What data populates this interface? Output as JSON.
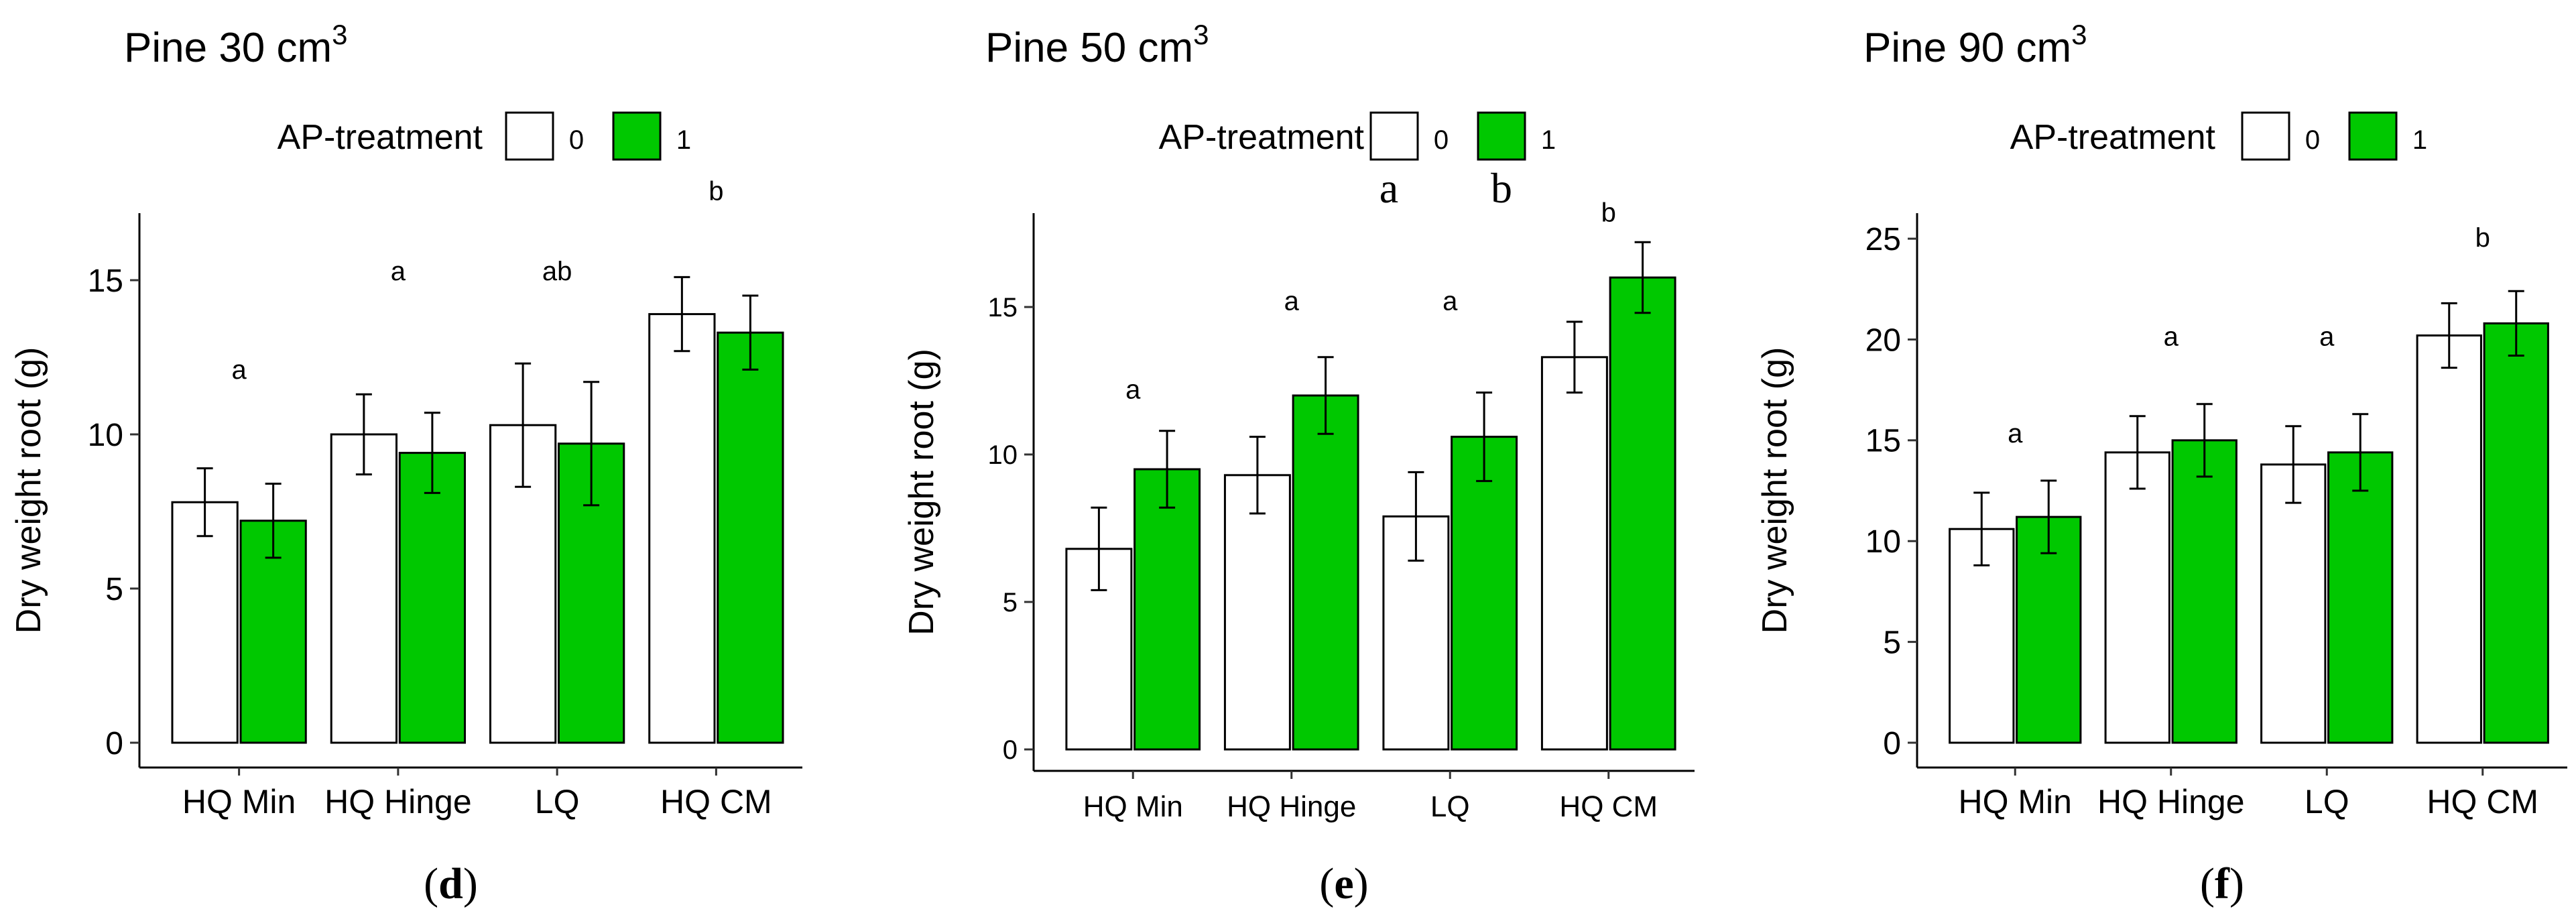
{
  "chart_data": [
    {
      "type": "bar",
      "title": "Pine 30 cm",
      "title_superscript": "3",
      "panel_label": {
        "open": "(",
        "letter": "d",
        "close": ")"
      },
      "legend": {
        "title": "AP-treatment",
        "entries": [
          {
            "label": "0",
            "color": "#ffffff"
          },
          {
            "label": "1",
            "color": "#00c800"
          }
        ],
        "placement": "top"
      },
      "xlabel": "",
      "ylabel": "Dry weight root (g)",
      "ylim": [
        0,
        17
      ],
      "yticks": [
        0,
        5,
        10,
        15
      ],
      "categories": [
        "HQ Min",
        "HQ Hinge",
        "LQ",
        "HQ CM"
      ],
      "series": [
        {
          "name": "0",
          "color": "#ffffff",
          "values": [
            7.8,
            10.0,
            10.3,
            13.9
          ],
          "errors": [
            1.1,
            1.3,
            2.0,
            1.2
          ]
        },
        {
          "name": "1",
          "color": "#00c800",
          "values": [
            7.2,
            9.4,
            9.7,
            13.3
          ],
          "errors": [
            1.2,
            1.3,
            2.0,
            1.2
          ]
        }
      ],
      "group_letters": [
        "a",
        "a",
        "ab",
        "b"
      ],
      "group_letter_values": [
        11.8,
        15.0,
        15.0,
        17.6
      ],
      "extra_annotations": []
    },
    {
      "type": "bar",
      "title": "Pine 50 cm",
      "title_superscript": "3",
      "panel_label": {
        "open": "(",
        "letter": "e",
        "close": ")"
      },
      "legend": {
        "title": "AP-treatment",
        "entries": [
          {
            "label": "0",
            "color": "#ffffff"
          },
          {
            "label": "1",
            "color": "#00c800"
          }
        ],
        "placement": "top"
      },
      "xlabel": "",
      "ylabel": "Dry weight root (g)",
      "ylim": [
        0,
        18
      ],
      "yticks": [
        0,
        5,
        10,
        15
      ],
      "categories": [
        "HQ Min",
        "HQ Hinge",
        "LQ",
        "HQ CM"
      ],
      "series": [
        {
          "name": "0",
          "color": "#ffffff",
          "values": [
            6.8,
            9.3,
            7.9,
            13.3
          ],
          "errors": [
            1.4,
            1.3,
            1.5,
            1.2
          ]
        },
        {
          "name": "1",
          "color": "#00c800",
          "values": [
            9.5,
            12.0,
            10.6,
            16.0
          ],
          "errors": [
            1.3,
            1.3,
            1.5,
            1.2
          ]
        }
      ],
      "group_letters": [
        "a",
        "a",
        "a",
        "b"
      ],
      "group_letter_values": [
        11.9,
        14.9,
        14.9,
        17.9
      ],
      "extra_annotations": [
        "a",
        "b"
      ]
    },
    {
      "type": "bar",
      "title": "Pine 90 cm",
      "title_superscript": "3",
      "panel_label": {
        "open": "(",
        "letter": "f",
        "close": ")"
      },
      "legend": {
        "title": "AP-treatment",
        "entries": [
          {
            "label": "0",
            "color": "#ffffff"
          },
          {
            "label": "1",
            "color": "#00c800"
          }
        ],
        "placement": "top"
      },
      "xlabel": "",
      "ylabel": "Dry weight root (g)",
      "ylim": [
        0,
        26
      ],
      "yticks": [
        0,
        5,
        10,
        15,
        20,
        25
      ],
      "categories": [
        "HQ Min",
        "HQ Hinge",
        "LQ",
        "HQ CM"
      ],
      "series": [
        {
          "name": "0",
          "color": "#ffffff",
          "values": [
            10.6,
            14.4,
            13.8,
            20.2
          ],
          "errors": [
            1.8,
            1.8,
            1.9,
            1.6
          ]
        },
        {
          "name": "1",
          "color": "#00c800",
          "values": [
            11.2,
            15.0,
            14.4,
            20.8
          ],
          "errors": [
            1.8,
            1.8,
            1.9,
            1.6
          ]
        }
      ],
      "group_letters": [
        "a",
        "a",
        "a",
        "b"
      ],
      "group_letter_values": [
        14.9,
        19.7,
        19.7,
        24.6
      ],
      "extra_annotations": []
    }
  ]
}
